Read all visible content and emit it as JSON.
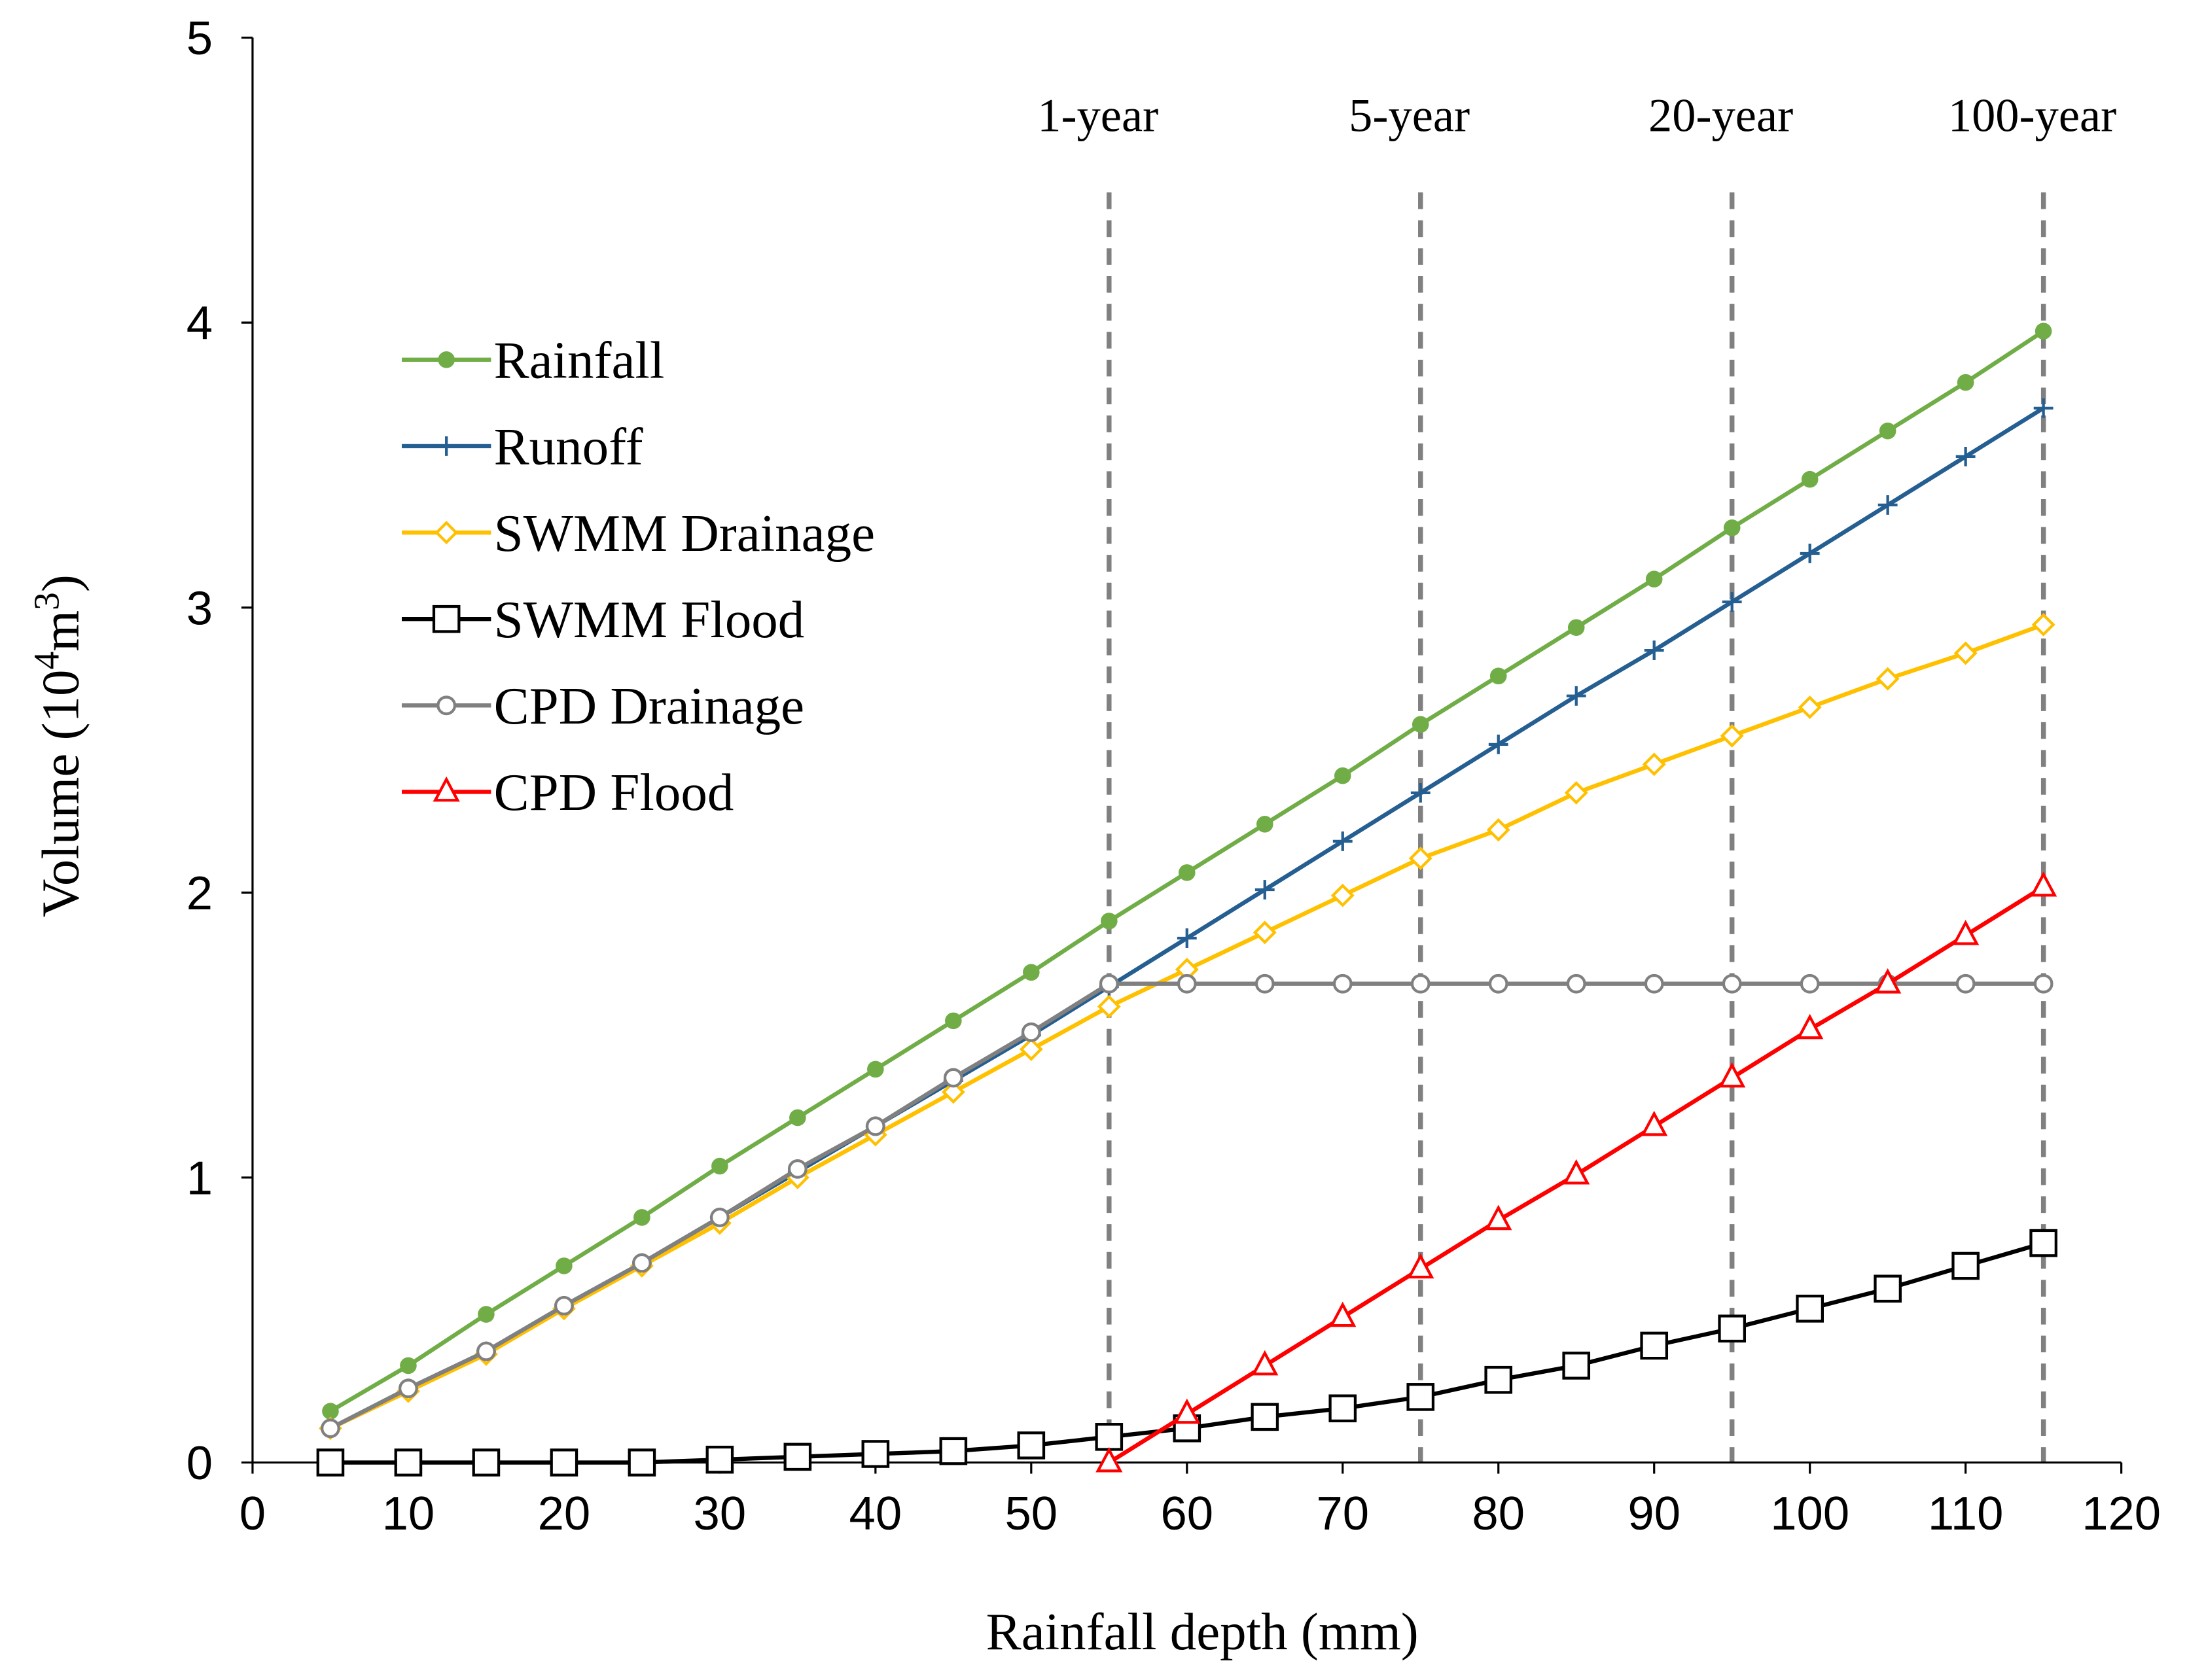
{
  "chart_data": {
    "type": "line",
    "title": "",
    "xlabel": "Rainfall depth (mm)",
    "ylabel_parts": {
      "pre": "Volume (10",
      "sup1": "4",
      "mid": "m",
      "sup2": "3",
      "post": ")"
    },
    "xlim": [
      0,
      120
    ],
    "ylim": [
      0,
      5
    ],
    "xticks": [
      0,
      10,
      20,
      30,
      40,
      50,
      60,
      70,
      80,
      90,
      100,
      110,
      120
    ],
    "yticks": [
      0,
      1,
      2,
      3,
      4,
      5
    ],
    "grid": false,
    "legend_position": "upper-left",
    "x": [
      5,
      10,
      15,
      20,
      25,
      30,
      35,
      40,
      45,
      50,
      55,
      60,
      65,
      70,
      75,
      80,
      85,
      90,
      95,
      100,
      105,
      110,
      115
    ],
    "series": [
      {
        "name": "Rainfall",
        "color": "#70ad47",
        "marker": "filled-circle",
        "values": [
          0.18,
          0.34,
          0.52,
          0.69,
          0.86,
          1.04,
          1.21,
          1.38,
          1.55,
          1.72,
          1.9,
          2.07,
          2.24,
          2.41,
          2.59,
          2.76,
          2.93,
          3.1,
          3.28,
          3.45,
          3.62,
          3.79,
          3.97
        ]
      },
      {
        "name": "Runoff",
        "color": "#255e91",
        "marker": "plus",
        "values": [
          0.12,
          0.26,
          0.39,
          0.55,
          0.7,
          0.86,
          1.02,
          1.18,
          1.34,
          1.5,
          1.67,
          1.84,
          2.01,
          2.18,
          2.35,
          2.52,
          2.69,
          2.85,
          3.02,
          3.19,
          3.36,
          3.53,
          3.7
        ]
      },
      {
        "name": "SWMM Drainage",
        "color": "#ffc000",
        "marker": "open-diamond",
        "values": [
          0.12,
          0.25,
          0.38,
          0.54,
          0.69,
          0.84,
          1.0,
          1.15,
          1.3,
          1.45,
          1.6,
          1.73,
          1.86,
          1.99,
          2.12,
          2.22,
          2.35,
          2.45,
          2.55,
          2.65,
          2.75,
          2.84,
          2.94
        ]
      },
      {
        "name": "SWMM Flood",
        "color": "#000000",
        "marker": "open-square",
        "values": [
          0,
          0,
          0,
          0,
          0,
          0.01,
          0.02,
          0.03,
          0.04,
          0.06,
          0.09,
          0.12,
          0.16,
          0.19,
          0.23,
          0.29,
          0.34,
          0.41,
          0.47,
          0.54,
          0.61,
          0.69,
          0.77
        ]
      },
      {
        "name": "CPD Drainage",
        "color": "#808080",
        "marker": "open-circle",
        "values": [
          0.12,
          0.26,
          0.39,
          0.55,
          0.7,
          0.86,
          1.03,
          1.18,
          1.35,
          1.51,
          1.68,
          1.68,
          1.68,
          1.68,
          1.68,
          1.68,
          1.68,
          1.68,
          1.68,
          1.68,
          1.68,
          1.68,
          1.68
        ]
      },
      {
        "name": "CPD Flood",
        "color": "#ff0000",
        "marker": "open-triangle",
        "values": [
          null,
          null,
          null,
          null,
          null,
          null,
          null,
          null,
          null,
          null,
          0,
          0.17,
          0.34,
          0.51,
          0.68,
          0.85,
          1.01,
          1.18,
          1.35,
          1.52,
          1.68,
          1.85,
          2.02
        ]
      }
    ],
    "reference_lines": [
      {
        "x": 55,
        "label": "1-year"
      },
      {
        "x": 75,
        "label": "5-year"
      },
      {
        "x": 95,
        "label": "20-year"
      },
      {
        "x": 115,
        "label": "100-year"
      }
    ],
    "reference_line_color": "#808080"
  }
}
